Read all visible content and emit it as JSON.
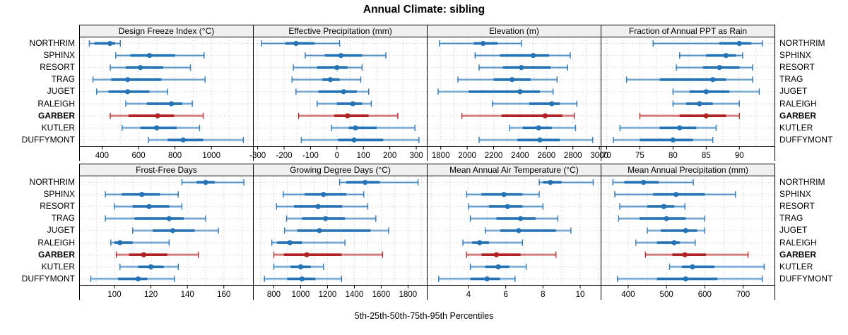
{
  "title": "Annual Climate: sibling",
  "caption": "5th-25th-50th-75th-95th Percentiles",
  "sites": [
    "NORTHRIM",
    "SPHINX",
    "RESORT",
    "TRAG",
    "JUGET",
    "RALEIGH",
    "GARBER",
    "KUTLER",
    "DUFFYMONT"
  ],
  "highlight_site": "GARBER",
  "colors": {
    "normal": "#2373b6",
    "highlight": "#b22222",
    "strip_bg": "#f0f0f0",
    "grid": "#c3c3c3",
    "border": "#000000"
  },
  "percentile_levels": [
    5,
    25,
    50,
    75,
    95
  ],
  "chart_data": [
    {
      "type": "percentile-interval-dotplot",
      "title": "Design Freeze Index (°C)",
      "xlim": [
        278,
        1228
      ],
      "ticks": [
        400,
        600,
        800,
        1000
      ],
      "grid_step": 100,
      "values": [
        [
          330,
          358,
          443,
          472,
          500
        ],
        [
          475,
          555,
          660,
          800,
          960
        ],
        [
          445,
          530,
          610,
          735,
          885
        ],
        [
          350,
          450,
          540,
          725,
          965
        ],
        [
          370,
          435,
          540,
          660,
          760
        ],
        [
          530,
          645,
          780,
          840,
          895
        ],
        [
          445,
          545,
          705,
          795,
          955
        ],
        [
          510,
          610,
          700,
          810,
          935
        ],
        [
          655,
          760,
          845,
          955,
          1175
        ]
      ]
    },
    {
      "type": "percentile-interval-dotplot",
      "title": "Effective Precipitation (mm)",
      "xlim": [
        -315,
        340
      ],
      "ticks": [
        -300,
        -200,
        -100,
        0,
        100,
        200,
        300
      ],
      "grid_step": 50,
      "values": [
        [
          -285,
          -195,
          -155,
          -85,
          10
        ],
        [
          -120,
          -45,
          15,
          95,
          185
        ],
        [
          -165,
          -75,
          0,
          40,
          95
        ],
        [
          -170,
          -55,
          -25,
          10,
          90
        ],
        [
          -155,
          -70,
          25,
          75,
          120
        ],
        [
          -75,
          0,
          60,
          95,
          130
        ],
        [
          -145,
          -10,
          40,
          120,
          230
        ],
        [
          -20,
          45,
          70,
          150,
          295
        ],
        [
          -135,
          5,
          65,
          175,
          310
        ]
      ]
    },
    {
      "type": "percentile-interval-dotplot",
      "title": "Elevation (m)",
      "xlim": [
        1700,
        3010
      ],
      "ticks": [
        1800,
        2000,
        2200,
        2400,
        2600,
        2800,
        3000
      ],
      "grid_step": 100,
      "values": [
        [
          1790,
          2050,
          2120,
          2230,
          2410
        ],
        [
          2060,
          2250,
          2500,
          2620,
          2780
        ],
        [
          2090,
          2270,
          2410,
          2630,
          2760
        ],
        [
          1930,
          2200,
          2340,
          2480,
          2680
        ],
        [
          1780,
          2010,
          2400,
          2550,
          2650
        ],
        [
          2190,
          2470,
          2640,
          2700,
          2830
        ],
        [
          1960,
          2260,
          2590,
          2720,
          2810
        ],
        [
          2320,
          2420,
          2540,
          2640,
          2820
        ],
        [
          2090,
          2380,
          2550,
          2700,
          2950
        ]
      ]
    },
    {
      "type": "percentile-interval-dotplot",
      "title": "Fraction of Annual PPT as Rain",
      "xlim": [
        69.2,
        95.3
      ],
      "ticks": [
        70,
        75,
        80,
        85,
        90
      ],
      "grid_step": 2.5,
      "values": [
        [
          77,
          87,
          90,
          91.8,
          93.5
        ],
        [
          81,
          85,
          88,
          89.5,
          90.5
        ],
        [
          80.5,
          84.5,
          87,
          90,
          92
        ],
        [
          73,
          78,
          86,
          88,
          92
        ],
        [
          80,
          82.5,
          85,
          88.5,
          93
        ],
        [
          80,
          82,
          84,
          86,
          90
        ],
        [
          75,
          81,
          85,
          88,
          90
        ],
        [
          72,
          78,
          81,
          83.5,
          86.5
        ],
        [
          71,
          75,
          80,
          83,
          86
        ]
      ]
    },
    {
      "type": "percentile-interval-dotplot",
      "title": "Frost-Free Days",
      "xlim": [
        81,
        176
      ],
      "ticks": [
        100,
        120,
        140,
        160
      ],
      "grid_step": 10,
      "values": [
        [
          137,
          145,
          150,
          155,
          171
        ],
        [
          95,
          104,
          115,
          125,
          135
        ],
        [
          100,
          110,
          119,
          130,
          137
        ],
        [
          95,
          111,
          130,
          138,
          150
        ],
        [
          110,
          121,
          132,
          144,
          157
        ],
        [
          98,
          100,
          103,
          110,
          130
        ],
        [
          101,
          108,
          116,
          129,
          146
        ],
        [
          103,
          113,
          120,
          127,
          135
        ],
        [
          87,
          102,
          113,
          118,
          133
        ]
      ]
    },
    {
      "type": "percentile-interval-dotplot",
      "title": "Growing Degree Days (°C)",
      "xlim": [
        650,
        1940
      ],
      "ticks": [
        800,
        1000,
        1200,
        1400,
        1600,
        1800
      ],
      "grid_step": 100,
      "values": [
        [
          1290,
          1340,
          1480,
          1590,
          1875
        ],
        [
          870,
          1030,
          1170,
          1340,
          1470
        ],
        [
          820,
          950,
          1130,
          1310,
          1500
        ],
        [
          895,
          1010,
          1185,
          1330,
          1560
        ],
        [
          880,
          975,
          1140,
          1520,
          1655
        ],
        [
          785,
          825,
          920,
          1010,
          1330
        ],
        [
          800,
          875,
          1045,
          1305,
          1610
        ],
        [
          800,
          925,
          1000,
          1075,
          1170
        ],
        [
          730,
          900,
          1010,
          1110,
          1305
        ]
      ]
    },
    {
      "type": "percentile-interval-dotplot",
      "title": "Mean Annual Air Temperature (°C)",
      "xlim": [
        1.8,
        11.1
      ],
      "ticks": [
        4,
        6,
        8,
        10
      ],
      "grid_step": 1,
      "values": [
        [
          7.8,
          8.0,
          8.4,
          9.0,
          10.7
        ],
        [
          3.9,
          4.7,
          5.9,
          6.9,
          7.8
        ],
        [
          4.0,
          5.1,
          6.1,
          6.9,
          8.0
        ],
        [
          4.1,
          5.5,
          6.8,
          7.6,
          8.8
        ],
        [
          4.9,
          5.7,
          6.7,
          8.7,
          9.5
        ],
        [
          3.7,
          4.2,
          4.6,
          5.1,
          6.9
        ],
        [
          3.9,
          4.7,
          5.5,
          6.8,
          8.7
        ],
        [
          4.1,
          4.9,
          5.6,
          6.2,
          7.1
        ],
        [
          2.4,
          4.1,
          5.0,
          5.7,
          6.5
        ]
      ]
    },
    {
      "type": "percentile-interval-dotplot",
      "title": "Mean Annual Precipitation (mm)",
      "xlim": [
        330,
        782
      ],
      "ticks": [
        400,
        500,
        600,
        700
      ],
      "grid_step": 50,
      "values": [
        [
          360,
          390,
          440,
          480,
          570
        ],
        [
          365,
          465,
          525,
          600,
          680
        ],
        [
          378,
          450,
          493,
          520,
          548
        ],
        [
          375,
          430,
          500,
          550,
          600
        ],
        [
          450,
          485,
          550,
          580,
          600
        ],
        [
          420,
          475,
          520,
          535,
          575
        ],
        [
          445,
          515,
          548,
          603,
          713
        ],
        [
          508,
          540,
          568,
          625,
          755
        ],
        [
          372,
          475,
          550,
          633,
          750
        ]
      ]
    }
  ]
}
